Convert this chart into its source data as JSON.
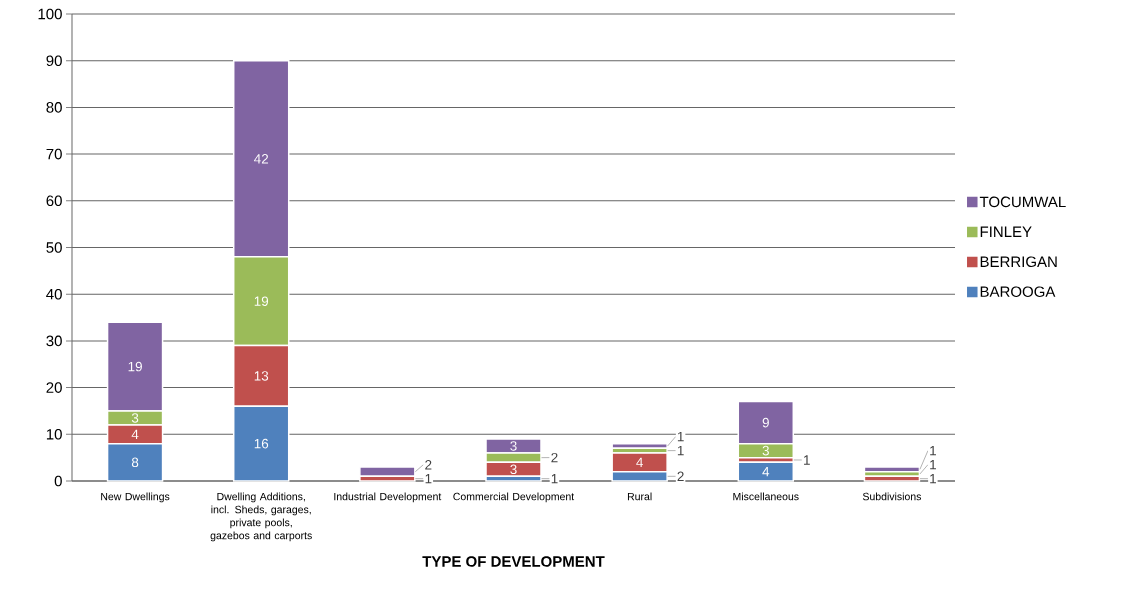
{
  "chart_data": {
    "type": "bar",
    "stacked": true,
    "xlabel": "TYPE OF DEVELOPMENT",
    "categories": [
      "New Dwellings",
      "Dwelling Additions, incl. Sheds, garages, private pools, gazebos and carports",
      "Industrial Development",
      "Commercial Development",
      "Rural",
      "Miscellaneous",
      "Subdivisions"
    ],
    "series": [
      {
        "name": "BAROOGA",
        "color": "#4f81bd",
        "values": [
          8,
          16,
          0,
          1,
          2,
          4,
          0
        ],
        "value_labels": [
          "8",
          "16",
          null,
          "1",
          "2",
          "4",
          null
        ]
      },
      {
        "name": "BERRIGAN",
        "color": "#c0504d",
        "values": [
          4,
          13,
          1,
          3,
          4,
          1,
          1
        ],
        "value_labels": [
          "4",
          "13",
          "1",
          "3",
          "4",
          "1",
          "1"
        ]
      },
      {
        "name": "FINLEY",
        "color": "#9bbb59",
        "values": [
          3,
          19,
          0,
          2,
          1,
          3,
          1
        ],
        "value_labels": [
          "3",
          "19",
          null,
          "2",
          "1",
          "3",
          "1"
        ]
      },
      {
        "name": "TOCUMWAL",
        "color": "#8064a2",
        "values": [
          19,
          42,
          2,
          3,
          1,
          9,
          1
        ],
        "value_labels": [
          "19",
          "42",
          "2",
          "3",
          "1",
          "9",
          "1"
        ]
      }
    ],
    "ylim": [
      0,
      100
    ],
    "yticks": [
      0,
      10,
      20,
      30,
      40,
      50,
      60,
      70,
      80,
      90,
      100
    ],
    "grid": "y",
    "legend": "right"
  }
}
